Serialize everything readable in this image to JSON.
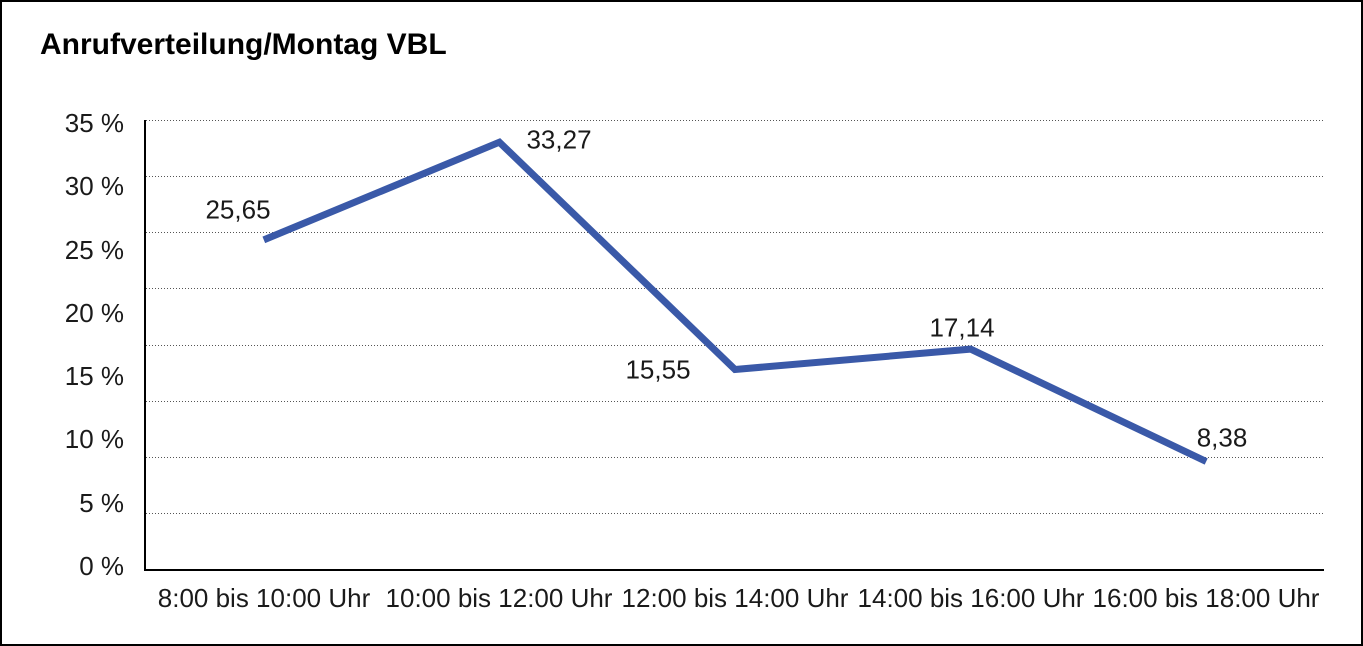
{
  "window": {
    "background": "#ffffff",
    "frame_border_color": "#000000"
  },
  "chart_data": {
    "type": "line",
    "title": "Anrufverteilung/Montag VBL",
    "categories": [
      "8:00 bis 10:00 Uhr",
      "10:00 bis 12:00 Uhr",
      "12:00 bis 14:00 Uhr",
      "14:00 bis 16:00 Uhr",
      "16:00 bis 18:00 Uhr"
    ],
    "values": [
      25.65,
      33.27,
      15.55,
      17.14,
      8.38
    ],
    "value_labels": [
      "25,65",
      "33,27",
      "15,55",
      "17,14",
      "8,38"
    ],
    "y_tick_labels": [
      "35 %",
      "30 %",
      "25 %",
      "20 %",
      "15 %",
      "10 %",
      "5 %",
      "0 %"
    ],
    "ylim": [
      0,
      35
    ],
    "xlabel": "",
    "ylabel": "",
    "legend": "none",
    "grid": {
      "horizontal": true,
      "style": "dotted",
      "intervals": 8
    },
    "line_color": "#3A59A8",
    "axis_color": "#000000",
    "gridline_color": "#555555",
    "text_color": "#1a1a1a"
  }
}
